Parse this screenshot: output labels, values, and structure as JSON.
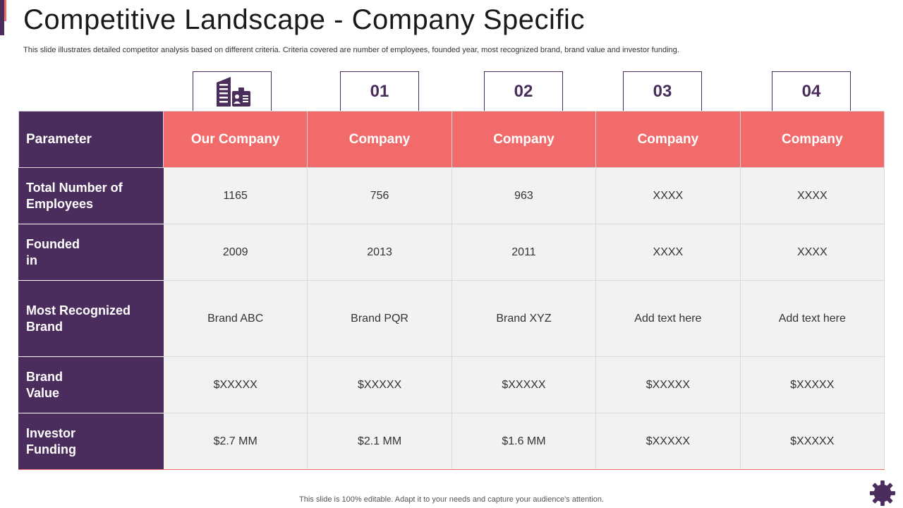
{
  "slide": {
    "title": "Competitive Landscape - Company Specific",
    "subtitle": "This slide illustrates detailed competitor analysis based on different criteria. Criteria covered are number of employees, founded year, most recognized brand, brand value and investor funding.",
    "footer": "This slide is 100% editable. Adapt it to your needs and capture your audience's attention."
  },
  "tabs": {
    "icon": "office-building-icon",
    "numbers": [
      "01",
      "02",
      "03",
      "04"
    ]
  },
  "table": {
    "header": {
      "parameter": "Parameter",
      "columns": [
        "Our Company",
        "Company",
        "Company",
        "Company",
        "Company"
      ]
    },
    "rows": [
      {
        "label": "Total Number of Employees",
        "values": [
          "1165",
          "756",
          "963",
          "XXXX",
          "XXXX"
        ]
      },
      {
        "label": "Founded in",
        "values": [
          "2009",
          "2013",
          "2011",
          "XXXX",
          "XXXX"
        ]
      },
      {
        "label": "Most Recognized Brand",
        "values": [
          "Brand ABC",
          "Brand PQR",
          "Brand XYZ",
          "Add text here",
          "Add text here"
        ]
      },
      {
        "label": "Brand Value",
        "values": [
          "$XXXXX",
          "$XXXXX",
          "$XXXXX",
          "$XXXXX",
          "$XXXXX"
        ]
      },
      {
        "label": "Investor Funding",
        "values": [
          "$2.7 MM",
          "$2.1 MM",
          "$1.6 MM",
          "$XXXXX",
          "$XXXXX"
        ]
      }
    ]
  },
  "colors": {
    "purple": "#4a2d5c",
    "coral": "#f26b6b",
    "cell_gray": "#f2f2f2"
  },
  "decor": {
    "corner_icon": "gear-icon"
  }
}
